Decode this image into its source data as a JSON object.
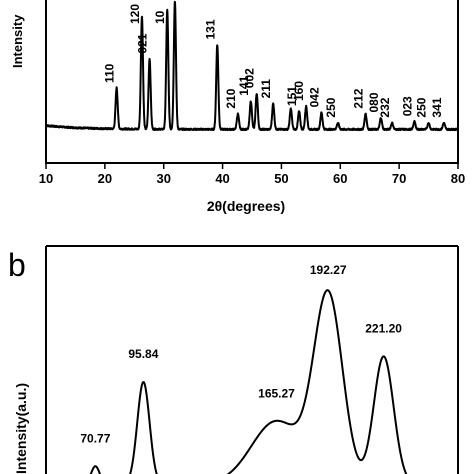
{
  "chart_data": [
    {
      "type": "line",
      "xlabel": "2θ(degrees)",
      "ylabel": "Intensity",
      "xlim": [
        10,
        80
      ],
      "x_ticks": [
        10,
        20,
        30,
        40,
        50,
        60,
        70,
        80
      ],
      "grid": false,
      "peaks": [
        {
          "x": 22.0,
          "height": 0.32,
          "label": "110"
        },
        {
          "x": 26.3,
          "height": 0.88,
          "label": "120"
        },
        {
          "x": 27.6,
          "height": 0.55,
          "label": "021"
        },
        {
          "x": 30.6,
          "height": 0.93,
          "label": "10"
        },
        {
          "x": 31.9,
          "height": 1.0,
          "label": ""
        },
        {
          "x": 39.1,
          "height": 0.66,
          "label": "131"
        },
        {
          "x": 42.6,
          "height": 0.12,
          "label": "210"
        },
        {
          "x": 44.8,
          "height": 0.22,
          "label": "141"
        },
        {
          "x": 45.8,
          "height": 0.28,
          "label": "002"
        },
        {
          "x": 48.6,
          "height": 0.2,
          "label": "211"
        },
        {
          "x": 51.6,
          "height": 0.16,
          "label": ""
        },
        {
          "x": 53.0,
          "height": 0.14,
          "label": "151"
        },
        {
          "x": 54.2,
          "height": 0.18,
          "label": "160"
        },
        {
          "x": 56.8,
          "height": 0.13,
          "label": "042"
        },
        {
          "x": 59.6,
          "height": 0.05,
          "label": "250"
        },
        {
          "x": 64.3,
          "height": 0.12,
          "label": "212"
        },
        {
          "x": 66.9,
          "height": 0.09,
          "label": "080"
        },
        {
          "x": 68.8,
          "height": 0.05,
          "label": "232"
        },
        {
          "x": 72.6,
          "height": 0.06,
          "label": "023"
        },
        {
          "x": 75.0,
          "height": 0.05,
          "label": "250"
        },
        {
          "x": 77.6,
          "height": 0.05,
          "label": "341"
        }
      ]
    },
    {
      "type": "line",
      "panel_label": "b",
      "ylabel": "Intensity(a.u.)",
      "peaks": [
        {
          "x": 70.77,
          "height": 0.09,
          "label": "70.77"
        },
        {
          "x": 95.84,
          "height": 0.52,
          "label": "95.84"
        },
        {
          "x": 165.27,
          "height": 0.32,
          "label": "165.27"
        },
        {
          "x": 192.27,
          "height": 0.95,
          "label": "192.27"
        },
        {
          "x": 221.2,
          "height": 0.65,
          "label": "221.20"
        }
      ]
    }
  ]
}
